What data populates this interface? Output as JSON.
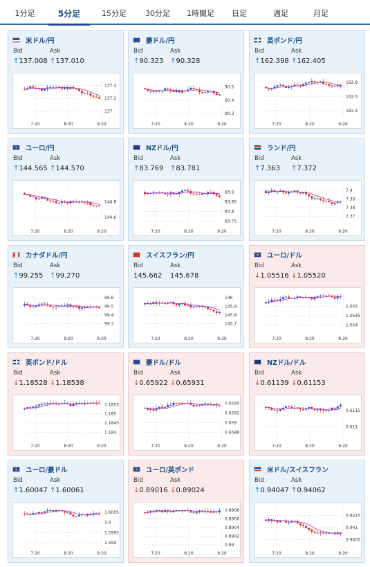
{
  "tabs": [
    "1分足",
    "5分足",
    "15分足",
    "30分足",
    "1時間足",
    "日足",
    "週足",
    "月足"
  ],
  "active_tab": 1,
  "labels": {
    "bid": "Bid",
    "ask": "Ask"
  },
  "colors": {
    "up_card_bg": "#e8f2fa",
    "down_card_bg": "#fbeaea",
    "bull_candle": "#2a4fb8",
    "bear_candle": "#d0302a",
    "ma_line": "#b030c0",
    "link": "#1d4e85"
  },
  "cards": [
    {
      "title": "米ドル/円",
      "flag": "us",
      "dir": "up",
      "arrow": "↑",
      "bid": "137.008",
      "ask": "137.010",
      "chart_data": {
        "type": "candlestick",
        "x_ticks": [
          "7:20",
          "8:20",
          "9:20"
        ],
        "y_ticks": [
          "137.4",
          "137.2",
          "137"
        ],
        "ylim": [
          136.9,
          137.5
        ]
      }
    },
    {
      "title": "豪ドル/円",
      "flag": "au",
      "dir": "up",
      "arrow": "↑",
      "bid": "90.323",
      "ask": "90.328",
      "chart_data": {
        "type": "candlestick",
        "x_ticks": [
          "7:20",
          "8:20",
          "9:20"
        ],
        "y_ticks": [
          "90.5",
          "90.4",
          "90.3"
        ],
        "ylim": [
          90.27,
          90.56
        ]
      }
    },
    {
      "title": "英ポンド/円",
      "flag": "gb",
      "dir": "up",
      "arrow": "↑",
      "bid": "162.398",
      "ask": "162.405",
      "chart_data": {
        "type": "candlestick",
        "x_ticks": [
          "7:20",
          "8:20",
          "9:20"
        ],
        "y_ticks": [
          "162.8",
          "162.6",
          "162.4"
        ],
        "ylim": [
          162.3,
          162.85
        ]
      }
    },
    {
      "title": "ユーロ/円",
      "flag": "eu",
      "dir": "up",
      "arrow": "↑",
      "bid": "144.565",
      "ask": "144.570",
      "chart_data": {
        "type": "candlestick",
        "x_ticks": [
          "7:20",
          "8:20",
          "9:20"
        ],
        "y_ticks": [
          "144.8",
          "144.6"
        ],
        "ylim": [
          144.5,
          145.0
        ]
      }
    },
    {
      "title": "NZドル/円",
      "flag": "nz",
      "dir": "up",
      "arrow": "↑",
      "bid": "83.769",
      "ask": "83.781",
      "chart_data": {
        "type": "candlestick",
        "x_ticks": [
          "7:20",
          "8:20",
          "9:20"
        ],
        "y_ticks": [
          "83.9",
          "83.85",
          "83.8",
          "83.75"
        ],
        "ylim": [
          83.73,
          83.93
        ]
      }
    },
    {
      "title": "ランド/円",
      "flag": "za",
      "dir": "up",
      "arrow": "↑",
      "bid": "7.363",
      "ask": "7.372",
      "chart_data": {
        "type": "candlestick",
        "x_ticks": [
          "7:20",
          "8:20",
          "9:20"
        ],
        "y_ticks": [
          "7.4",
          "7.39",
          "7.38",
          "7.37"
        ],
        "ylim": [
          7.36,
          7.405
        ]
      }
    },
    {
      "title": "カナダドル/円",
      "flag": "ca",
      "dir": "up",
      "arrow": "↑",
      "bid": "99.255",
      "ask": "99.270",
      "chart_data": {
        "type": "candlestick",
        "x_ticks": [
          "7:20",
          "8:20",
          "9:20"
        ],
        "y_ticks": [
          "99.6",
          "99.5",
          "99.4",
          "99.3"
        ],
        "ylim": [
          99.2,
          99.65
        ]
      }
    },
    {
      "title": "スイスフラン/円",
      "flag": "ch",
      "dir": "up",
      "arrow": "",
      "bid": "145.662",
      "ask": "145.678",
      "chart_data": {
        "type": "candlestick",
        "x_ticks": [
          "7:20",
          "8:20",
          "9:20"
        ],
        "y_ticks": [
          "146",
          "145.9",
          "145.8",
          "145.7"
        ],
        "ylim": [
          145.6,
          146.05
        ]
      }
    },
    {
      "title": "ユーロ/ドル",
      "flag": "eu",
      "dir": "down",
      "arrow": "↓",
      "bid": "1.05516",
      "ask": "1.05520",
      "chart_data": {
        "type": "candlestick",
        "x_ticks": [
          "7:20",
          "8:20",
          "9:20"
        ],
        "y_ticks": [
          "1.055",
          "1.0545",
          "1.054"
        ],
        "ylim": [
          1.0536,
          1.0557
        ]
      }
    },
    {
      "title": "英ポンド/ドル",
      "flag": "gb",
      "dir": "down",
      "arrow": "↓",
      "bid": "1.18528",
      "ask": "1.18538",
      "chart_data": {
        "type": "candlestick",
        "x_ticks": [
          "7:20",
          "8:20",
          "9:20"
        ],
        "y_ticks": [
          "1.1855",
          "1.185",
          "1.1845",
          "1.184"
        ],
        "ylim": [
          1.1836,
          1.1857
        ]
      }
    },
    {
      "title": "豪ドル/ドル",
      "flag": "au",
      "dir": "down",
      "arrow": "↓",
      "bid": "0.65922",
      "ask": "0.65931",
      "chart_data": {
        "type": "candlestick",
        "x_ticks": [
          "7:20",
          "8:20",
          "9:20"
        ],
        "y_ticks": [
          "0.6594",
          "0.6592",
          "0.659",
          "0.6588"
        ],
        "ylim": [
          0.65865,
          0.65945
        ]
      }
    },
    {
      "title": "NZドル/ドル",
      "flag": "nz",
      "dir": "down",
      "arrow": "↓",
      "bid": "0.61139",
      "ask": "0.61153",
      "chart_data": {
        "type": "candlestick",
        "x_ticks": [
          "7:20",
          "8:20",
          "9:20"
        ],
        "y_ticks": [
          "0.6115",
          "0.611"
        ],
        "ylim": [
          0.6106,
          0.6118
        ]
      }
    },
    {
      "title": "ユーロ/豪ドル",
      "flag": "eu",
      "dir": "up",
      "arrow": "↑",
      "bid": "1.60047",
      "ask": "1.60061",
      "chart_data": {
        "type": "candlestick",
        "x_ticks": [
          "7:20",
          "8:20",
          "9:20"
        ],
        "y_ticks": [
          "1.6005",
          "1.6",
          "1.5995",
          "1.599"
        ],
        "ylim": [
          1.5988,
          1.6007
        ]
      }
    },
    {
      "title": "ユーロ/英ポンド",
      "flag": "eu",
      "dir": "down",
      "arrow": "↓",
      "bid": "0.89016",
      "ask": "0.89024",
      "chart_data": {
        "type": "candlestick",
        "x_ticks": [
          "7:20",
          "8:20",
          "9:20"
        ],
        "y_ticks": [
          "0.8908",
          "0.8906",
          "0.8904",
          "0.8902",
          "0.89"
        ],
        "ylim": [
          0.88995,
          0.89085
        ]
      }
    },
    {
      "title": "米ドル/スイスフラン",
      "flag": "us",
      "dir": "up",
      "arrow": "↑",
      "bid": "0.94047",
      "ask": "0.94062",
      "chart_data": {
        "type": "candlestick",
        "x_ticks": [
          "7:20",
          "8:20",
          "9:20"
        ],
        "y_ticks": [
          "0.9415",
          "0.941",
          "0.9405"
        ],
        "ylim": [
          0.9402,
          0.9418
        ]
      }
    }
  ]
}
